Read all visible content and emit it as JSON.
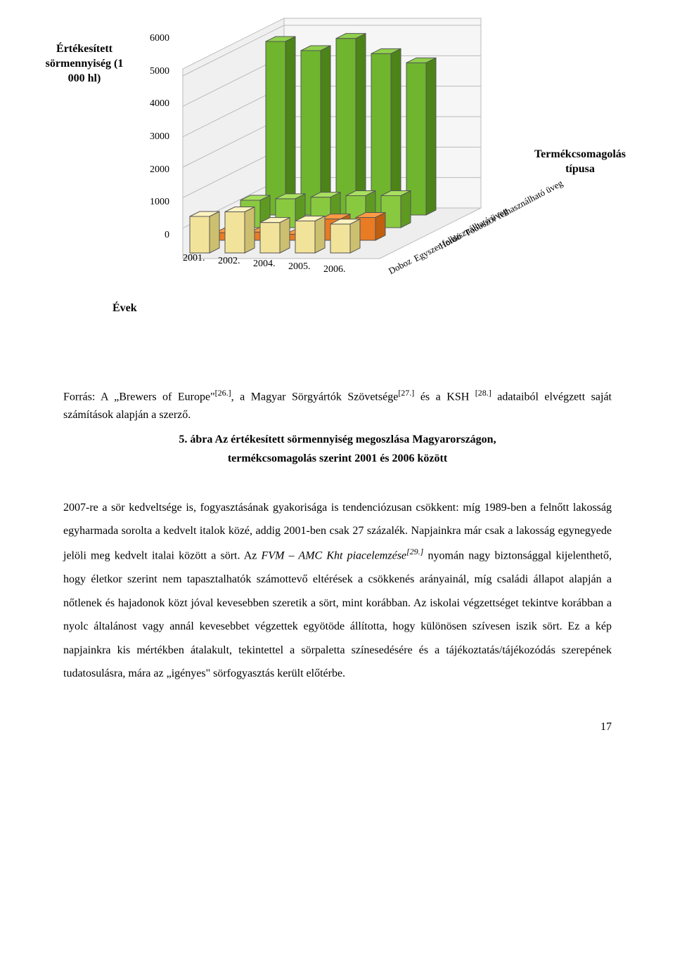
{
  "chart": {
    "type": "3d-bar",
    "y_axis_title": "Értékesített sörmennyiség (1 000 hl)",
    "x_axis_title": "Évek",
    "z_axis_title": "Termékcsomagolás típusa",
    "y_ticks": [
      "0",
      "1000",
      "2000",
      "3000",
      "4000",
      "5000",
      "6000"
    ],
    "y_max": 6000,
    "years": [
      "2001.",
      "2002.",
      "2004.",
      "2005.",
      "2006."
    ],
    "packaging": [
      "Doboz",
      "Egyszer felhasználható üveg",
      "Hordó",
      "Többször felhasználható üveg"
    ],
    "series": {
      "Doboz": [
        1200,
        1350,
        1000,
        1050,
        950
      ],
      "Egyszer felhasználható üveg": [
        250,
        270,
        200,
        700,
        750
      ],
      "Hordó": [
        900,
        950,
        1000,
        1050,
        1050
      ],
      "Többször felhasználható üveg": [
        5700,
        5400,
        5800,
        5300,
        5000
      ]
    },
    "colors": {
      "Doboz": {
        "face": "#f2e39a",
        "side": "#cdbf70",
        "top": "#fff4c0"
      },
      "Egyszer felhasználható üveg": {
        "face": "#e87b24",
        "side": "#c05f10",
        "top": "#ff9a44"
      },
      "Hordó": {
        "face": "#89c93f",
        "side": "#5e9a22",
        "top": "#a8e05e"
      },
      "Többször felhasználható üveg": {
        "face": "#6fb52e",
        "side": "#4c8418",
        "top": "#90d14c"
      }
    },
    "floor_fill": "#eeeeee",
    "floor_stroke": "#bbbbbb",
    "axis_font_size": 14
  },
  "source": {
    "prefix": "Forrás: A „Brewers of Europe\"",
    "ref1": "[26.]",
    "mid1": ", a Magyar Sörgyártók Szövetsége",
    "ref2": "[27.]",
    "mid2": " és a KSH ",
    "ref3": "[28.]",
    "tail": " adataiból elvégzett saját számítások alapján a szerző."
  },
  "caption": {
    "line1": "5. ábra  Az értékesített sörmennyiség megoszlása Magyarországon,",
    "line2": "termékcsomagolás szerint 2001 és 2006 között"
  },
  "body": {
    "p1a": "2007-re a sör kedveltsége is, fogyasztásának gyakorisága is tendenciózusan csökkent: míg 1989-ben a felnőtt lakosság egyharmada sorolta a kedvelt italok közé, addig 2001-ben csak 27 százalék. Napjainkra már csak a lakosság egynegyede jelöli meg kedvelt italai között a sört. Az ",
    "p1_italic": "FVM – AMC Kht piacelemzése",
    "p1_ref": "[29.]",
    "p1b": " nyomán nagy biztonsággal kijelenthető, hogy életkor szerint nem tapasztalhatók számottevő eltérések a csökkenés arányainál, míg családi állapot alapján a nőtlenek és hajadonok közt jóval kevesebben szeretik a sört, mint korábban. Az iskolai végzettséget tekintve korábban a nyolc általánost vagy annál kevesebbet végzettek egyötöde állította, hogy különösen szívesen iszik sört. Ez a kép napjainkra kis mértékben átalakult, tekintettel a sörpaletta színesedésére és a tájékoztatás/tájékozódás szerepének tudatosulásra, mára az „igényes\" sörfogyasztás került előtérbe."
  },
  "page_number": "17"
}
